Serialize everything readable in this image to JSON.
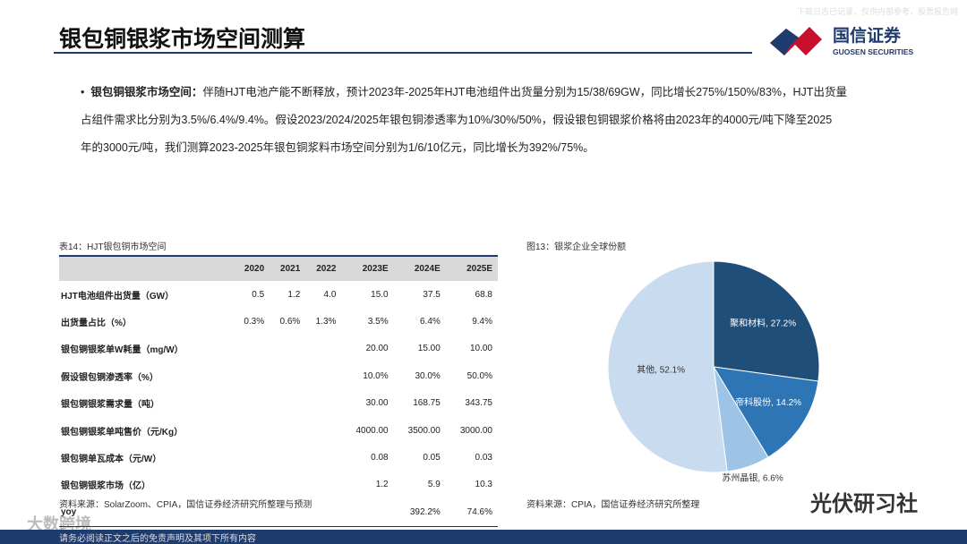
{
  "header": {
    "title": "银包铜银浆市场空间测算",
    "logo_cn": "国信证券",
    "logo_en": "GUOSEN SECURITIES",
    "notice": "下载日志已记录，仅供内部参考，股票报告网"
  },
  "bullet": {
    "label": "银包铜银浆市场空间：",
    "lines": [
      "伴随HJT电池产能不断释放，预计2023年-2025年HJT电池组件出货量分别为15/38/69GW，同比增长275%/150%/83%，HJT出货量",
      "占组件需求比分别为3.5%/6.4%/9.4%。假设2023/2024/2025年银包铜渗透率为10%/30%/50%，假设银包铜银浆价格将由2023年的4000元/吨下降至2025",
      "年的3000元/吨，我们测算2023-2025年银包铜浆料市场空间分别为1/6/10亿元，同比增长为392%/75%。"
    ]
  },
  "table": {
    "caption": "表14：HJT银包铜市场空间",
    "columns": [
      "2020",
      "2021",
      "2022",
      "2023E",
      "2024E",
      "2025E"
    ],
    "rows": [
      [
        "HJT电池组件出货量（GW）",
        "0.5",
        "1.2",
        "4.0",
        "15.0",
        "37.5",
        "68.8"
      ],
      [
        "出货量占比（%）",
        "0.3%",
        "0.6%",
        "1.3%",
        "3.5%",
        "6.4%",
        "9.4%"
      ],
      [
        "银包铜银浆单W耗量（mg/W）",
        null,
        null,
        null,
        "20.00",
        "15.00",
        "10.00"
      ],
      [
        "假设银包铜渗透率（%）",
        null,
        null,
        null,
        "10.0%",
        "30.0%",
        "50.0%"
      ],
      [
        "银包铜银浆需求量（吨）",
        null,
        null,
        null,
        "30.00",
        "168.75",
        "343.75"
      ],
      [
        "银包铜银浆单吨售价（元/Kg）",
        null,
        null,
        null,
        "4000.00",
        "3500.00",
        "3000.00"
      ],
      [
        "银包铜单瓦成本（元/W）",
        null,
        null,
        null,
        "0.08",
        "0.05",
        "0.03"
      ],
      [
        "银包铜银浆市场（亿）",
        null,
        null,
        null,
        "1.2",
        "5.9",
        "10.3"
      ],
      [
        "yoy",
        null,
        null,
        null,
        null,
        "392.2%",
        "74.6%"
      ]
    ],
    "source": "资料来源：SolarZoom、CPIA，国信证券经济研究所整理与预测"
  },
  "chart_data": {
    "type": "pie",
    "title": "图13：银浆企业全球份额",
    "values": [
      27.2,
      14.2,
      6.6,
      52.1
    ],
    "value_labels": [
      "聚和材料, 27.2%",
      "帝科股份, 14.2%",
      "苏州晶银, 6.6%",
      "其他, 52.1%"
    ],
    "colors": [
      "#1f4e79",
      "#2e75b6",
      "#9dc3e6",
      "#c9dcef"
    ],
    "source": "资料来源：CPIA，国信证券经济研究所整理"
  },
  "footer": {
    "disclaimer": "请务必阅读正文之后的免责声明及其项下所有内容",
    "watermark_left": "大数跨境",
    "watermark_right": "光伏研习社"
  }
}
